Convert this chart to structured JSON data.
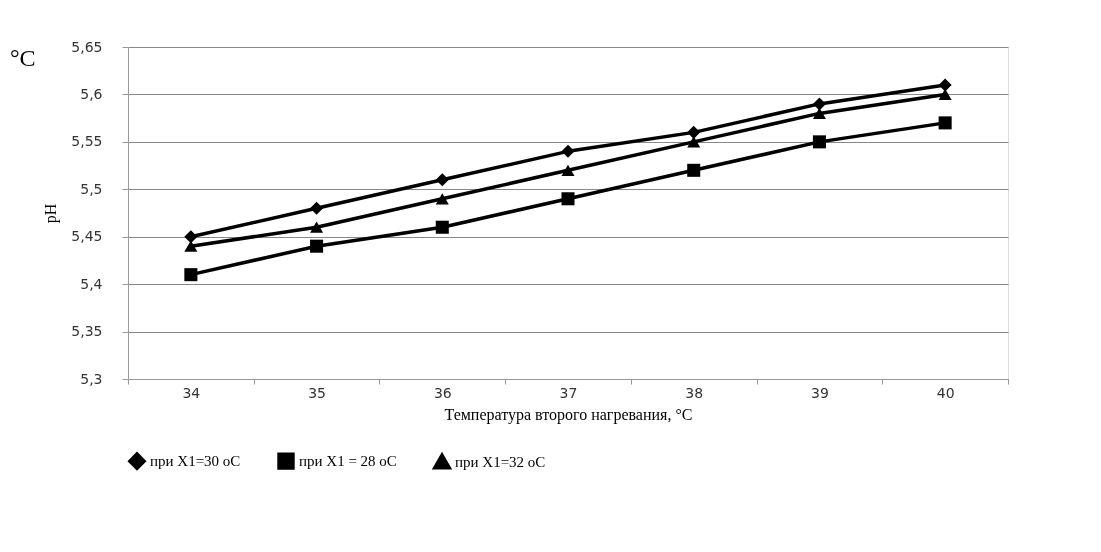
{
  "chart_data": {
    "type": "line",
    "xlabel": "Температура второго нагревания, °C",
    "ylabel": "pH",
    "annotations": [
      "°C"
    ],
    "categories": [
      "34",
      "35",
      "36",
      "37",
      "38",
      "39",
      "40"
    ],
    "series": [
      {
        "name": "при Х1=30 оС",
        "color": "#000000",
        "marker": "diamond",
        "values": [
          5.45,
          5.48,
          5.51,
          5.54,
          5.56,
          5.59,
          5.61
        ]
      },
      {
        "name": "при Х1 = 28 оС",
        "color": "#000000",
        "marker": "square",
        "values": [
          5.41,
          5.44,
          5.46,
          5.49,
          5.52,
          5.55,
          5.57
        ]
      },
      {
        "name": "при Х1=32 оС",
        "color": "#000000",
        "marker": "triangle",
        "values": [
          5.44,
          5.46,
          5.49,
          5.52,
          5.55,
          5.58,
          5.6
        ]
      }
    ],
    "ylim": [
      5.3,
      5.65
    ],
    "yticks": [
      {
        "value": 5.3,
        "label": "5,3"
      },
      {
        "value": 5.35,
        "label": "5,35"
      },
      {
        "value": 5.4,
        "label": "5,4"
      },
      {
        "value": 5.45,
        "label": "5,45"
      },
      {
        "value": 5.5,
        "label": "5,5"
      },
      {
        "value": 5.55,
        "label": "5,55"
      },
      {
        "value": 5.6,
        "label": "5,6"
      },
      {
        "value": 5.65,
        "label": "5,65"
      }
    ],
    "grid": "y",
    "legend": "bottom",
    "line_style": "solid"
  }
}
